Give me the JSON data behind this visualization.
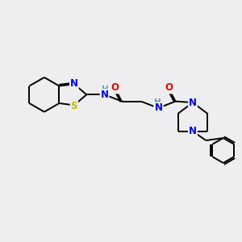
{
  "background_color": "#eeeef0",
  "atom_colors": {
    "C": "#000000",
    "N": "#0000ee",
    "O": "#ee0000",
    "S": "#bbbb00",
    "H": "#6699aa"
  },
  "bond_color": "#000000",
  "bond_width": 1.4,
  "figsize": [
    3.0,
    3.0
  ],
  "dpi": 100
}
